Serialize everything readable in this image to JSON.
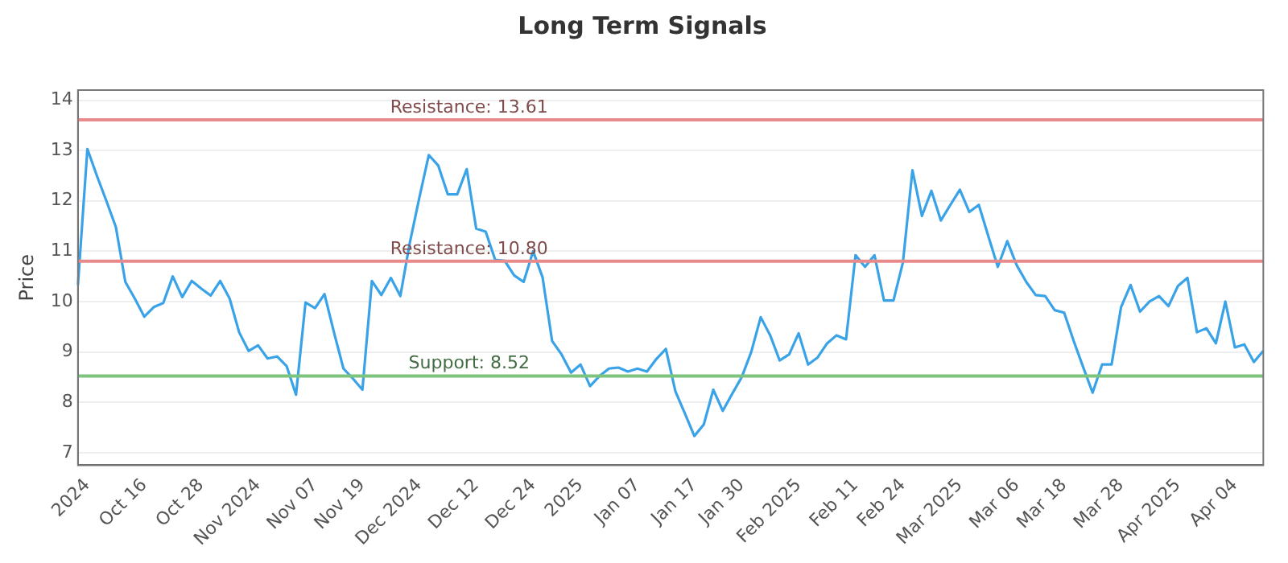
{
  "chart_data": {
    "type": "line",
    "title": "Long Term Signals",
    "ylabel": "Price",
    "categories": [
      null,
      "2024",
      null,
      null,
      null,
      null,
      null,
      "Oct 16",
      null,
      null,
      null,
      null,
      null,
      "Oct 28",
      null,
      null,
      null,
      null,
      null,
      "Nov 2024",
      null,
      null,
      null,
      null,
      null,
      "Nov 07",
      null,
      null,
      null,
      null,
      "Nov 19",
      null,
      null,
      null,
      null,
      null,
      "Dec 2024",
      null,
      null,
      null,
      null,
      null,
      "Dec 12",
      null,
      null,
      null,
      null,
      null,
      "Dec 24",
      null,
      null,
      null,
      null,
      "2025",
      null,
      null,
      null,
      null,
      null,
      "Jan 07",
      null,
      null,
      null,
      null,
      null,
      "Jan 17",
      null,
      null,
      null,
      null,
      "Jan 30",
      null,
      null,
      null,
      null,
      null,
      "Feb 2025",
      null,
      null,
      null,
      null,
      null,
      "Feb 11",
      null,
      null,
      null,
      null,
      "Feb 24",
      null,
      null,
      null,
      null,
      null,
      "Mar 2025",
      null,
      null,
      null,
      null,
      null,
      "Mar 06",
      null,
      null,
      null,
      null,
      "Mar 18",
      null,
      null,
      null,
      null,
      null,
      "Mar 28",
      null,
      null,
      null,
      null,
      null,
      "Apr 2025",
      null,
      null,
      null,
      null,
      null,
      "Apr 04",
      null,
      null,
      null
    ],
    "series": [
      {
        "color": "#3aa3e8",
        "values": [
          10.33,
          13.03,
          12.5,
          12.0,
          11.48,
          10.39,
          10.06,
          9.7,
          9.89,
          9.97,
          10.5,
          10.09,
          10.41,
          10.26,
          10.12,
          10.41,
          10.06,
          9.39,
          9.02,
          9.13,
          8.87,
          8.91,
          8.72,
          8.15,
          9.98,
          9.87,
          10.15,
          9.39,
          8.67,
          8.47,
          8.25,
          10.41,
          10.13,
          10.47,
          10.11,
          11.17,
          12.06,
          12.91,
          12.7,
          12.13,
          12.13,
          12.63,
          11.45,
          11.39,
          10.83,
          10.81,
          10.52,
          10.39,
          11.0,
          10.48,
          9.22,
          8.95,
          8.59,
          8.75,
          8.32,
          8.52,
          8.67,
          8.69,
          8.61,
          8.67,
          8.61,
          8.86,
          9.06,
          8.22,
          7.78,
          7.33,
          7.56,
          8.25,
          7.83,
          8.17,
          8.5,
          9.0,
          9.69,
          9.33,
          8.83,
          8.95,
          9.37,
          8.75,
          8.89,
          9.17,
          9.33,
          9.25,
          10.92,
          10.69,
          10.92,
          10.02,
          10.02,
          10.78,
          12.61,
          11.7,
          12.2,
          11.61,
          11.92,
          12.22,
          11.78,
          11.92,
          11.3,
          10.69,
          11.2,
          10.72,
          10.39,
          10.13,
          10.11,
          9.83,
          9.78,
          9.22,
          8.7,
          8.19,
          8.75,
          8.75,
          9.89,
          10.33,
          9.8,
          10.0,
          10.11,
          9.91,
          10.31,
          10.47,
          9.39,
          9.47,
          9.17,
          10.0,
          9.09,
          9.15,
          8.8,
          9.02
        ]
      }
    ],
    "ylim": [
      6.75,
      14.2
    ],
    "yticks": [
      7,
      8,
      9,
      10,
      11,
      12,
      13,
      14
    ],
    "grid": "y",
    "legend": false,
    "marker": "none",
    "line_style": "solid",
    "ref_lines": [
      {
        "axis": "y",
        "value": 13.61,
        "label": "Resistance: 13.61",
        "color": "#e88a8a"
      },
      {
        "axis": "y",
        "value": 10.8,
        "label": "Resistance: 10.80",
        "color": "#e88a8a"
      },
      {
        "axis": "y",
        "value": 8.52,
        "label": "Support: 8.52",
        "color": "#7cc47c"
      }
    ]
  }
}
